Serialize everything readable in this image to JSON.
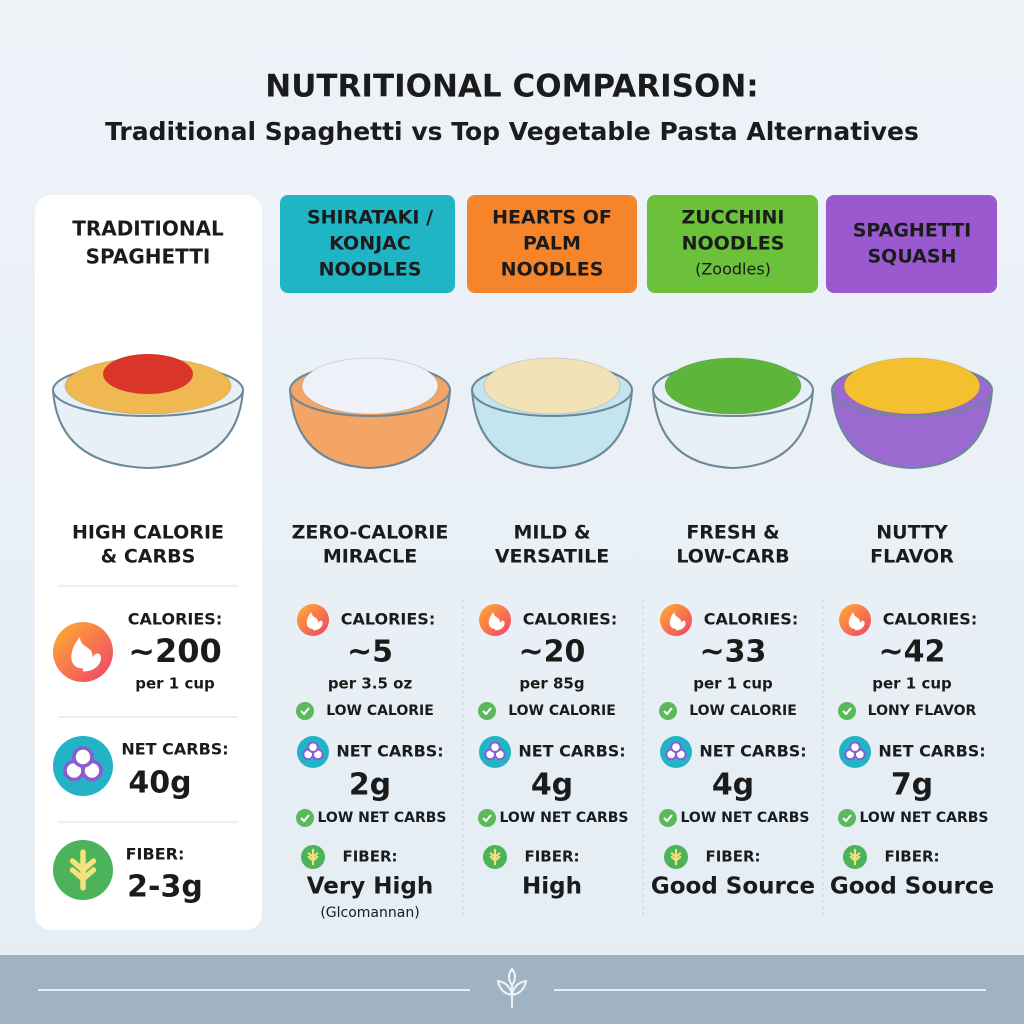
{
  "header": {
    "title": "NUTRITIONAL COMPARISON:",
    "subtitle": "Traditional Spaghetti vs Top Vegetable Pasta Alternatives"
  },
  "columns": [
    {
      "name": [
        "TRADITIONAL",
        "SPAGHETTI"
      ],
      "tagline": [
        "HIGH CALORIE",
        "& CARBS"
      ],
      "calories": {
        "label": "CALORIES:",
        "value": "~200",
        "unit": "per 1 cup"
      },
      "net_carbs": {
        "label": "NET CARBS:",
        "value": "40g"
      },
      "fiber": {
        "label": "FIBER:",
        "value": "2-3g"
      }
    },
    {
      "name": [
        "SHIRATAKI /",
        "KONJAC",
        "NOODLES"
      ],
      "tagline": [
        "ZERO-CALORIE",
        "MIRACLE"
      ],
      "calories": {
        "label": "CALORIES:",
        "value": "~5",
        "unit": "per 3.5 oz",
        "badge": "LOW CALORIE"
      },
      "net_carbs": {
        "label": "NET CARBS:",
        "value": "2g",
        "badge": "LOW NET CARBS"
      },
      "fiber": {
        "label": "FIBER:",
        "value": "Very High",
        "note": "(Glcomannan)"
      }
    },
    {
      "name": [
        "HEARTS OF",
        "PALM",
        "NOODLES"
      ],
      "tagline": [
        "MILD &",
        "VERSATILE"
      ],
      "calories": {
        "label": "CALORIES:",
        "value": "~20",
        "unit": "per 85g",
        "badge": "LOW CALORIE"
      },
      "net_carbs": {
        "label": "NET CARBS:",
        "value": "4g",
        "badge": "LOW NET CARBS"
      },
      "fiber": {
        "label": "FIBER:",
        "value": "High"
      }
    },
    {
      "name": [
        "ZUCCHINI",
        "NOODLES"
      ],
      "subname": "(Zoodles)",
      "tagline": [
        "FRESH &",
        "LOW-CARB"
      ],
      "calories": {
        "label": "CALORIES:",
        "value": "~33",
        "unit": "per 1 cup",
        "badge": "LOW CALORIE"
      },
      "net_carbs": {
        "label": "NET CARBS:",
        "value": "4g",
        "badge": "LOW NET CARBS"
      },
      "fiber": {
        "label": "FIBER:",
        "value": "Good Source"
      }
    },
    {
      "name": [
        "SPAGHETTI",
        "SQUASH"
      ],
      "tagline": [
        "NUTTY",
        "FLAVOR"
      ],
      "calories": {
        "label": "CALORIES:",
        "value": "~42",
        "unit": "per 1 cup",
        "badge": "LONY FLAVOR"
      },
      "net_carbs": {
        "label": "NET CARBS:",
        "value": "7g",
        "badge": "LOW NET CARBS"
      },
      "fiber": {
        "label": "FIBER:",
        "value": "Good Source"
      }
    }
  ]
}
